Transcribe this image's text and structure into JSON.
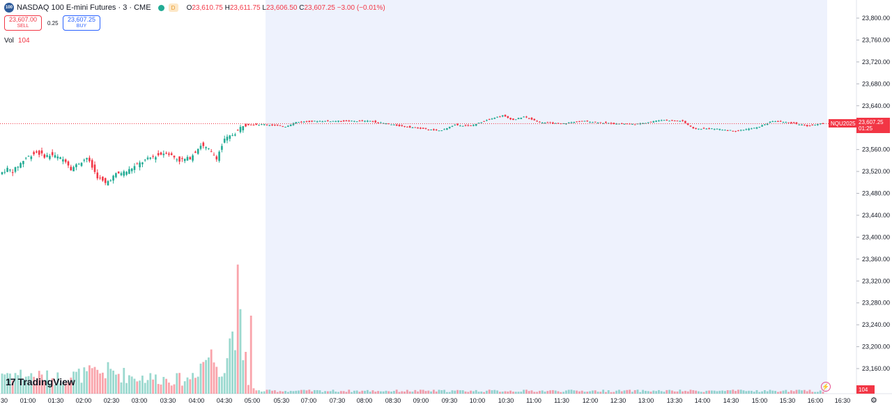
{
  "header": {
    "symbol_logo": "100",
    "symbol_title": "NASDAQ 100 E-mini Futures · 3 · CME",
    "badge_letter": "D",
    "ohlc": {
      "o_label": "O",
      "o_value": "23,610.75",
      "h_label": "H",
      "h_value": "23,611.75",
      "l_label": "L",
      "l_value": "23,606.50",
      "c_label": "C",
      "c_value": "23,607.25",
      "change": "−3.00 (−0.01%)"
    }
  },
  "trade": {
    "sell_price": "23,607.00",
    "sell_label": "SELL",
    "spread": "0.25",
    "buy_price": "23,607.25",
    "buy_label": "BUY"
  },
  "volume_legend": {
    "label": "Vol",
    "value": "104"
  },
  "price_tag": {
    "symbol": "NQU2025",
    "price": "23,607.25",
    "countdown": "01:25"
  },
  "volume_tag": "104",
  "brand": "TradingView",
  "icons": {
    "flash": "flash-icon",
    "settings": "gear-icon"
  },
  "colors": {
    "up": "#22ab94",
    "down": "#f23645",
    "session_bg": "#eef2fd"
  },
  "chart_data": {
    "type": "candlestick",
    "price_axis": {
      "min": 23130,
      "max": 23820,
      "ticks": [
        "23,800.00",
        "23,760.00",
        "23,720.00",
        "23,680.00",
        "23,640.00",
        "23,600.00",
        "23,560.00",
        "23,520.00",
        "23,480.00",
        "23,440.00",
        "23,400.00",
        "23,360.00",
        "23,320.00",
        "23,280.00",
        "23,240.00",
        "23,200.00",
        "23,160.00"
      ]
    },
    "time_axis": {
      "labels": [
        "30",
        "01:00",
        "01:30",
        "02:00",
        "02:30",
        "03:00",
        "03:30",
        "04:00",
        "04:30",
        "05:00",
        "05:30",
        "07:00",
        "07:30",
        "08:00",
        "08:30",
        "09:00",
        "09:30",
        "10:00",
        "10:30",
        "11:00",
        "11:30",
        "12:00",
        "12:30",
        "13:00",
        "13:30",
        "14:00",
        "14:30",
        "15:00",
        "15:30",
        "16:00",
        "16:30"
      ]
    },
    "last_price": 23607.25,
    "price_path": [
      {
        "t": 0,
        "p": 23515
      },
      {
        "t": 3,
        "p": 23525
      },
      {
        "t": 5,
        "p": 23520
      },
      {
        "t": 10,
        "p": 23545
      },
      {
        "t": 14,
        "p": 23555
      },
      {
        "t": 17,
        "p": 23548
      },
      {
        "t": 20,
        "p": 23550
      },
      {
        "t": 25,
        "p": 23540
      },
      {
        "t": 27,
        "p": 23525
      },
      {
        "t": 33,
        "p": 23545
      },
      {
        "t": 37,
        "p": 23510
      },
      {
        "t": 40,
        "p": 23498
      },
      {
        "t": 44,
        "p": 23515
      },
      {
        "t": 48,
        "p": 23520
      },
      {
        "t": 53,
        "p": 23535
      },
      {
        "t": 57,
        "p": 23545
      },
      {
        "t": 63,
        "p": 23555
      },
      {
        "t": 68,
        "p": 23540
      },
      {
        "t": 72,
        "p": 23545
      },
      {
        "t": 76,
        "p": 23568
      },
      {
        "t": 79,
        "p": 23560
      },
      {
        "t": 82,
        "p": 23545
      },
      {
        "t": 85,
        "p": 23578
      },
      {
        "t": 89,
        "p": 23590
      },
      {
        "t": 92,
        "p": 23605
      },
      {
        "t": 100,
        "p": 23606
      },
      {
        "t": 108,
        "p": 23602
      },
      {
        "t": 112,
        "p": 23610
      },
      {
        "t": 120,
        "p": 23612
      },
      {
        "t": 130,
        "p": 23612
      },
      {
        "t": 140,
        "p": 23612
      },
      {
        "t": 150,
        "p": 23604
      },
      {
        "t": 160,
        "p": 23598
      },
      {
        "t": 166,
        "p": 23594
      },
      {
        "t": 172,
        "p": 23605
      },
      {
        "t": 178,
        "p": 23603
      },
      {
        "t": 185,
        "p": 23616
      },
      {
        "t": 190,
        "p": 23622
      },
      {
        "t": 194,
        "p": 23614
      },
      {
        "t": 198,
        "p": 23620
      },
      {
        "t": 204,
        "p": 23610
      },
      {
        "t": 212,
        "p": 23607
      },
      {
        "t": 220,
        "p": 23612
      },
      {
        "t": 230,
        "p": 23608
      },
      {
        "t": 240,
        "p": 23606
      },
      {
        "t": 250,
        "p": 23614
      },
      {
        "t": 258,
        "p": 23612
      },
      {
        "t": 262,
        "p": 23598
      },
      {
        "t": 270,
        "p": 23598
      },
      {
        "t": 278,
        "p": 23594
      },
      {
        "t": 286,
        "p": 23600
      },
      {
        "t": 292,
        "p": 23612
      },
      {
        "t": 300,
        "p": 23608
      },
      {
        "t": 305,
        "p": 23603
      },
      {
        "t": 310,
        "p": 23607.25
      }
    ],
    "volume_profile": [
      {
        "t": 0,
        "v": 38
      },
      {
        "t": 20,
        "v": 28
      },
      {
        "t": 40,
        "v": 40
      },
      {
        "t": 50,
        "v": 30
      },
      {
        "t": 70,
        "v": 25
      },
      {
        "t": 78,
        "v": 70
      },
      {
        "t": 84,
        "v": 45
      },
      {
        "t": 89,
        "v": 165
      },
      {
        "t": 92,
        "v": 18
      },
      {
        "t": 96,
        "v": 5
      },
      {
        "t": 310,
        "v": 5
      }
    ]
  }
}
